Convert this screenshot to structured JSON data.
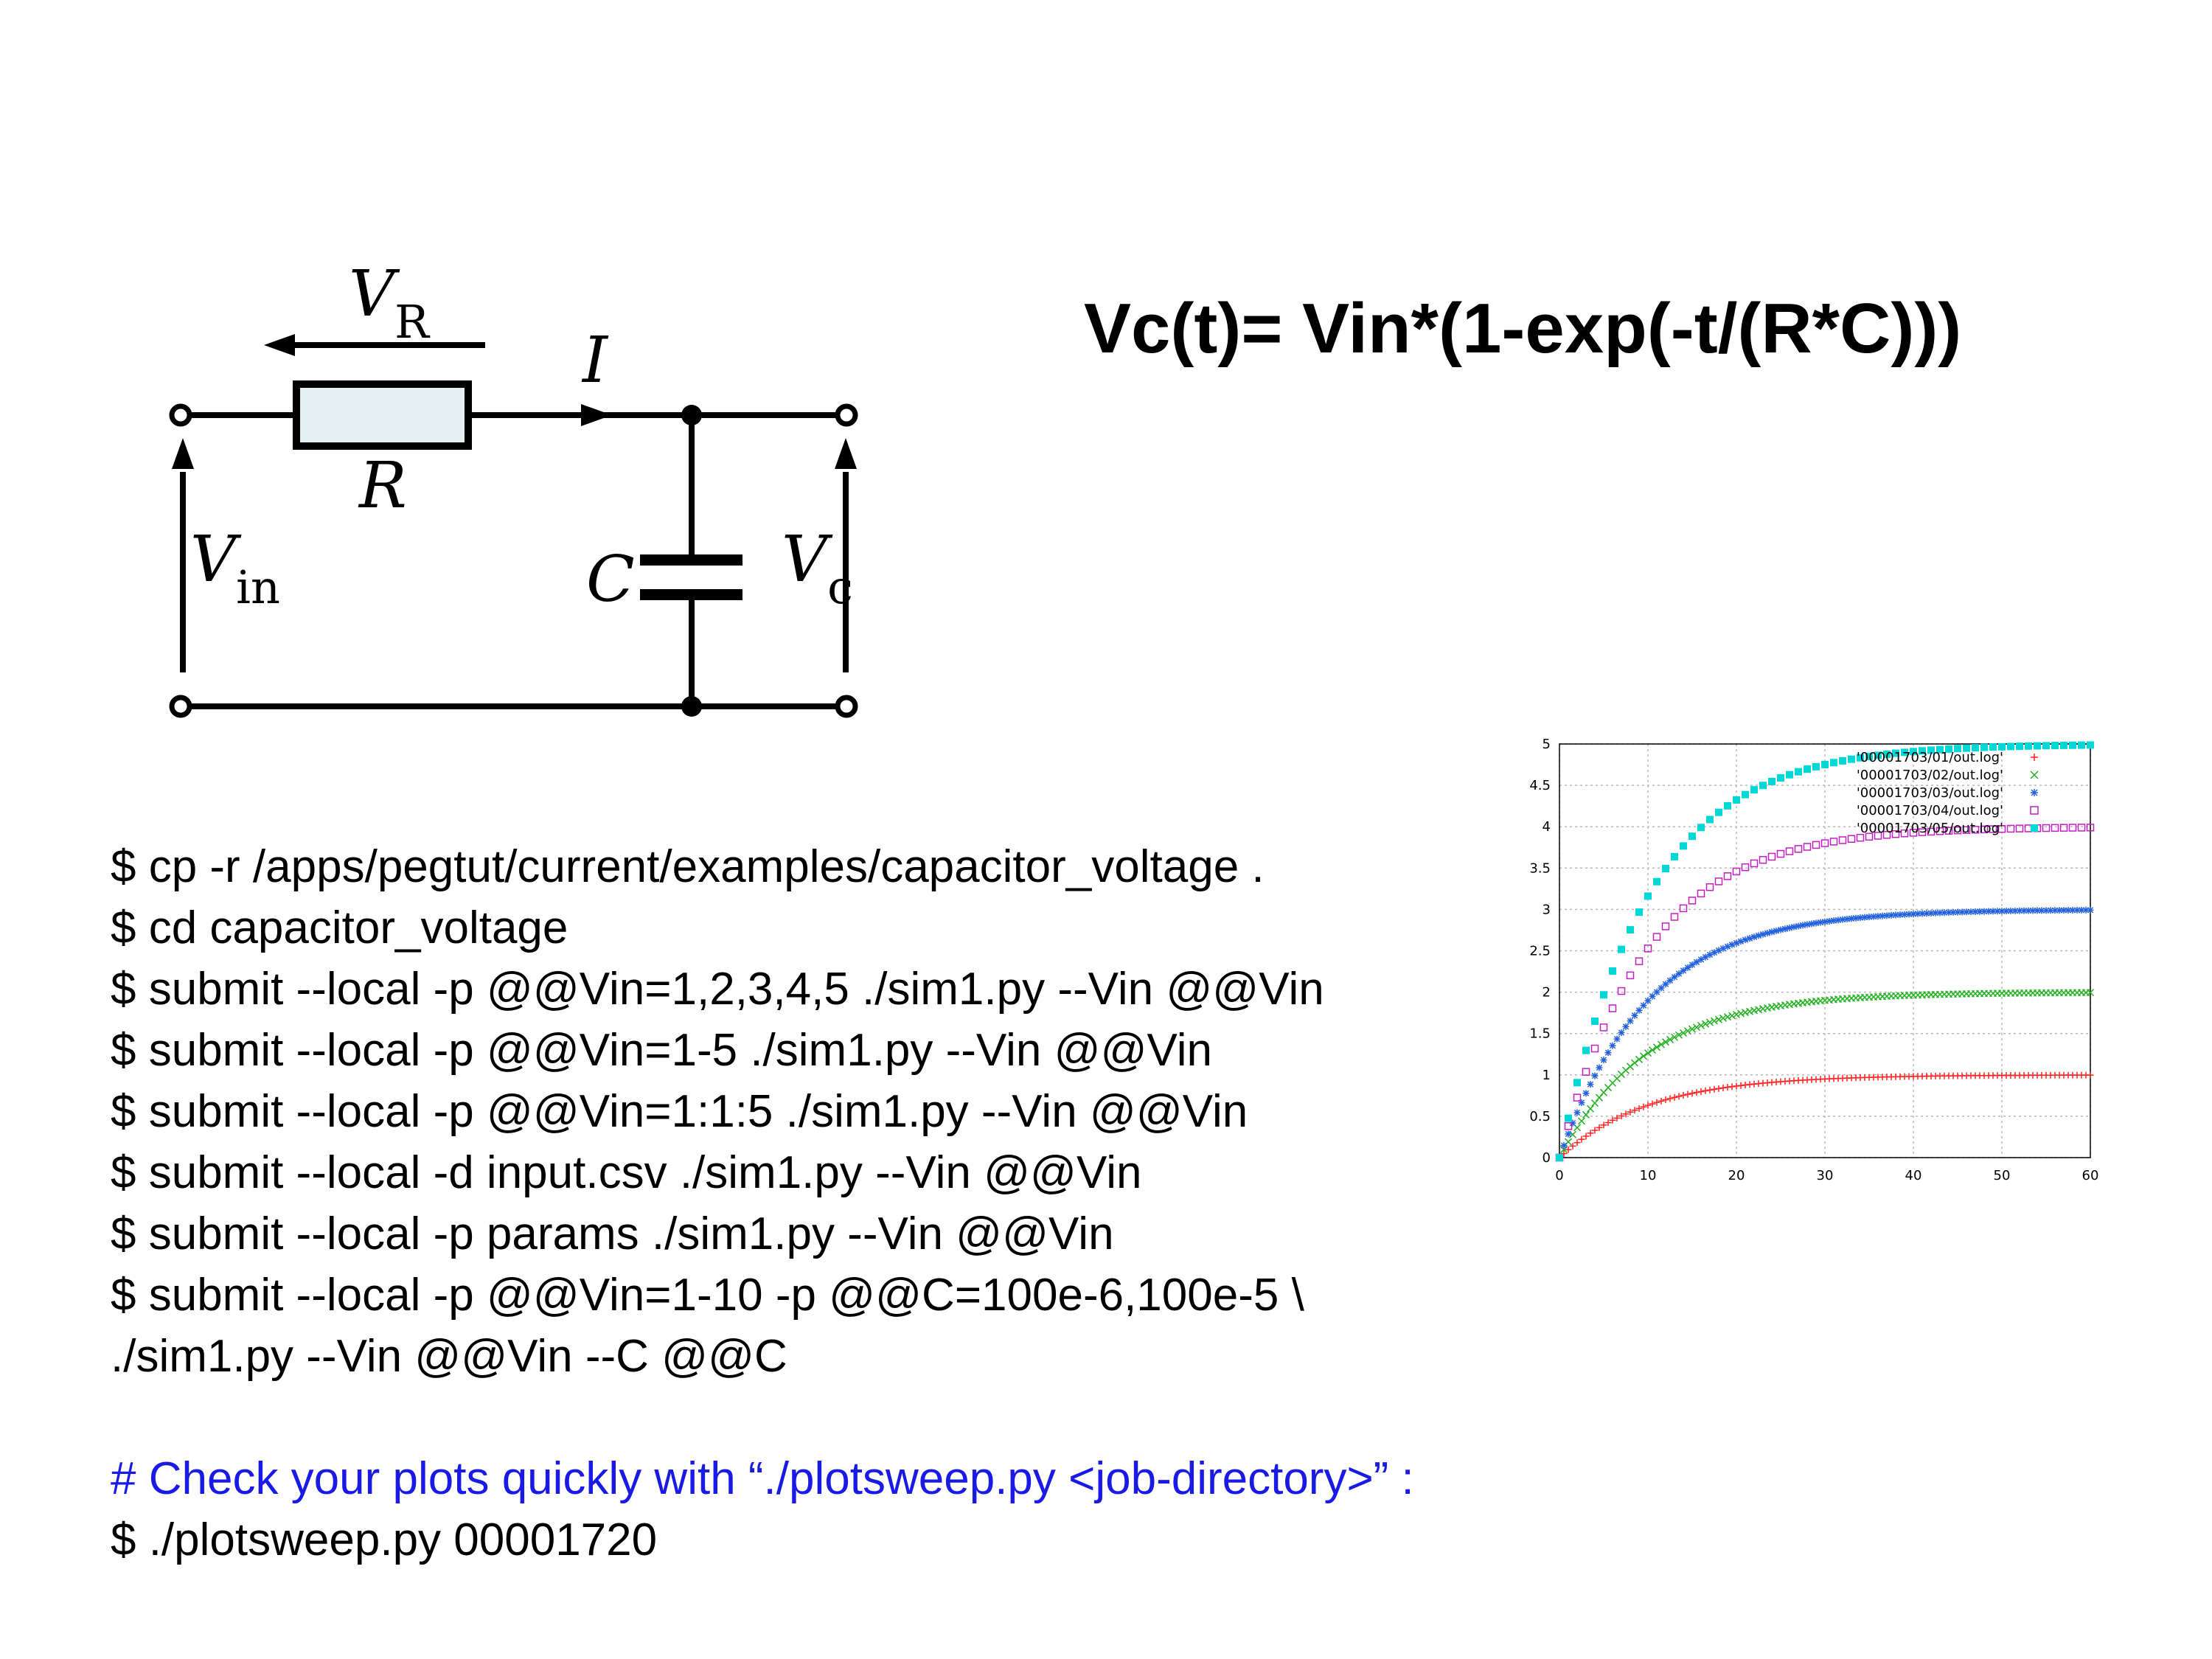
{
  "circuit": {
    "labels": {
      "vr_main": "V",
      "vr_sub": "R",
      "i": "I",
      "r": "R",
      "vin_main": "V",
      "vin_sub": "in",
      "c": "C",
      "vc_main": "V",
      "vc_sub": "c"
    }
  },
  "formula": "Vc(t)= Vin*(1-exp(-t/(R*C)))",
  "commands": {
    "lines": [
      "$ cp -r /apps/pegtut/current/examples/capacitor_voltage .",
      "$ cd capacitor_voltage",
      "$ submit --local -p @@Vin=1,2,3,4,5 ./sim1.py --Vin @@Vin",
      "$ submit --local -p @@Vin=1-5 ./sim1.py --Vin @@Vin",
      "$ submit --local -p @@Vin=1:1:5 ./sim1.py --Vin @@Vin",
      "$ submit --local -d input.csv ./sim1.py --Vin @@Vin",
      "$ submit --local -p params ./sim1.py --Vin @@Vin",
      "$ submit --local -p @@Vin=1-10 -p @@C=100e-6,100e-5 \\",
      "./sim1.py --Vin @@Vin --C @@C"
    ],
    "comment": "# Check your plots quickly with “./plotsweep.py <job-directory>” :",
    "final": "$ ./plotsweep.py 00001720",
    "comment_color": "#1a1ae6"
  },
  "chart_data": {
    "type": "scatter",
    "xlim": [
      0,
      60
    ],
    "ylim": [
      0,
      5
    ],
    "x_ticks": [
      "0",
      "10",
      "20",
      "30",
      "40",
      "50",
      "60"
    ],
    "y_ticks": [
      "0",
      "0.5",
      "1",
      "1.5",
      "2",
      "2.5",
      "3",
      "3.5",
      "4",
      "4.5",
      "5"
    ],
    "grid": true,
    "legend_position": "top-right",
    "time_constant": 10,
    "x_step": 0.5,
    "series": [
      {
        "name": "'00001703/01/out.log'",
        "vin": 1,
        "marker": "+",
        "color": "#ff2020"
      },
      {
        "name": "'00001703/02/out.log'",
        "vin": 2,
        "marker": "x",
        "color": "#20b020"
      },
      {
        "name": "'00001703/03/out.log'",
        "vin": 3,
        "marker": "*",
        "color": "#2060e0"
      },
      {
        "name": "'00001703/04/out.log'",
        "vin": 4,
        "marker": "square-open",
        "color": "#c020c0"
      },
      {
        "name": "'00001703/05/out.log'",
        "vin": 5,
        "marker": "square-filled",
        "color": "#00d8d8"
      }
    ]
  }
}
